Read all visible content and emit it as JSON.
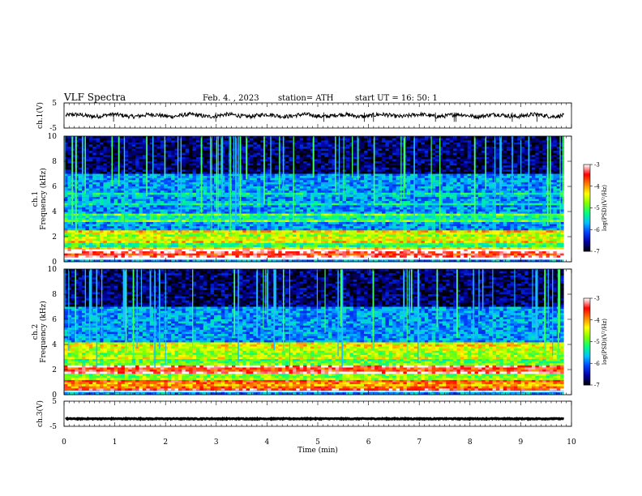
{
  "header": {
    "title": "VLF  Spectra",
    "date": "Feb. 4.  , 2023",
    "station": "station= ATH",
    "start": "start  UT  =     16: 50: 1"
  },
  "chart_data": [
    {
      "type": "line",
      "name": "ch1-waveform",
      "ylabel": "ch.1(V)",
      "ylim": [
        -5,
        5
      ],
      "yticks": [
        "5",
        "-5"
      ],
      "xlim": [
        0,
        10
      ],
      "baseline": 0,
      "x_end": 9.85,
      "line_color": "#000000"
    },
    {
      "type": "heatmap",
      "name": "ch1-spectrogram",
      "ylabel": "ch.1\nFrequency  (kHz)",
      "ylim": [
        0,
        10
      ],
      "yticks": [
        "0",
        "2",
        "4",
        "6",
        "8",
        "10"
      ],
      "xlim": [
        0,
        10
      ],
      "x_end": 9.85,
      "bands": [
        {
          "f": 0.6,
          "width": 0.25,
          "level": -3.6
        },
        {
          "f": 1.0,
          "width": 0.15,
          "level": -4.6
        },
        {
          "f": 1.3,
          "width": 0.5,
          "level": -5.2
        },
        {
          "f": 2.0,
          "width": 0.35,
          "level": -4.9
        },
        {
          "f": 3.5,
          "width": 0.2,
          "level": -5.6
        },
        {
          "f": 4.3,
          "width": 0.6,
          "level": -6.9
        },
        {
          "f": 5.0,
          "width": 0.3,
          "level": -6.2
        }
      ]
    },
    {
      "type": "heatmap",
      "name": "ch2-spectrogram",
      "ylabel": "ch.2\nFrequency  (kHz)",
      "ylim": [
        0,
        10
      ],
      "yticks": [
        "0",
        "2",
        "4",
        "6",
        "8",
        "10"
      ],
      "xlim": [
        0,
        10
      ],
      "x_end": 9.85,
      "bands": [
        {
          "f": 0.8,
          "width": 0.3,
          "level": -4.2
        },
        {
          "f": 1.5,
          "width": 0.6,
          "level": -4.9
        },
        {
          "f": 2.0,
          "width": 0.2,
          "level": -3.8
        },
        {
          "f": 2.8,
          "width": 0.8,
          "level": -5.1
        },
        {
          "f": 3.5,
          "width": 0.4,
          "level": -5.3
        }
      ]
    },
    {
      "type": "line",
      "name": "ch3-waveform",
      "ylabel": "ch.3(V)",
      "ylim": [
        -5,
        5
      ],
      "yticks": [
        "5",
        "-5"
      ],
      "xlim": [
        0,
        10
      ],
      "baseline": -2,
      "x_end": 9.85,
      "line_color": "#000000"
    }
  ],
  "x_axis": {
    "label": "Time  (min)",
    "ticks": [
      "0",
      "1",
      "2",
      "3",
      "4",
      "5",
      "6",
      "7",
      "8",
      "9",
      "10"
    ]
  },
  "colorbar": {
    "label": "log(PSD)(V²/Hz)",
    "range": [
      -7,
      -3
    ],
    "ticks": [
      "-3",
      "-4",
      "-5",
      "-6",
      "-7"
    ],
    "colors": [
      "#000000",
      "#0000a0",
      "#0040ff",
      "#00c0ff",
      "#00ff80",
      "#80ff00",
      "#ffff00",
      "#ff8000",
      "#ff0000",
      "#ffffff"
    ]
  }
}
